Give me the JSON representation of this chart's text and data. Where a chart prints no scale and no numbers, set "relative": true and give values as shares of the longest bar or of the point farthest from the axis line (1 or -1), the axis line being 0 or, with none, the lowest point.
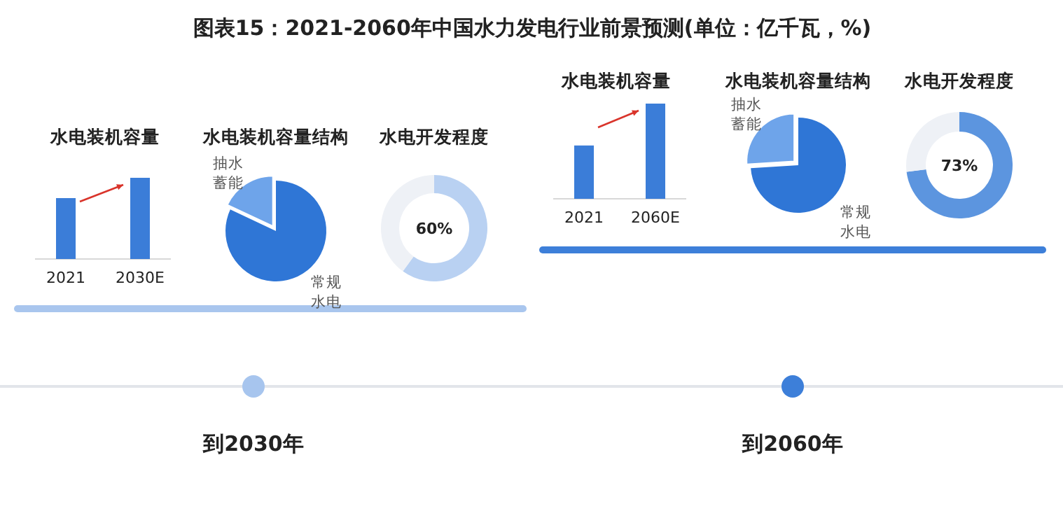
{
  "chart_data": [
    {
      "type": "other",
      "title": "图表15：2021-2060年中国水力发电行业前景预测(单位：亿千瓦，%)",
      "annotations": [
        "到2030年",
        "到2060年"
      ]
    },
    {
      "type": "bar",
      "title": "水电装机容量",
      "categories": [
        "2021",
        "2030E"
      ],
      "values": [
        0.75,
        1
      ],
      "relative": true,
      "color": "#3b7dd8"
    },
    {
      "type": "pie",
      "title": "水电装机容量结构",
      "categories": [
        "抽水蓄能",
        "常规水电"
      ],
      "values": [
        18,
        82
      ],
      "colors": [
        "#6ea4ea",
        "#2f76d6"
      ]
    },
    {
      "type": "donut",
      "title": "水电开发程度",
      "categories": [
        null,
        null
      ],
      "values": [
        60,
        40
      ],
      "colors": [
        "#b9d1f2",
        "#eef1f6"
      ],
      "value_labels": [
        "60%",
        null
      ]
    },
    {
      "type": "bar",
      "title": "水电装机容量",
      "categories": [
        "2021",
        "2060E"
      ],
      "values": [
        0.56,
        1
      ],
      "relative": true,
      "color": "#3b7dd8"
    },
    {
      "type": "pie",
      "title": "水电装机容量结构",
      "categories": [
        "抽水蓄能",
        "常规水电"
      ],
      "values": [
        26,
        74
      ],
      "colors": [
        "#6ea4ea",
        "#2f76d6"
      ]
    },
    {
      "type": "donut",
      "title": "水电开发程度",
      "categories": [
        null,
        null
      ],
      "values": [
        73,
        27
      ],
      "colors": [
        "#5c95df",
        "#eef1f6"
      ],
      "value_labels": [
        "73%",
        null
      ]
    }
  ]
}
